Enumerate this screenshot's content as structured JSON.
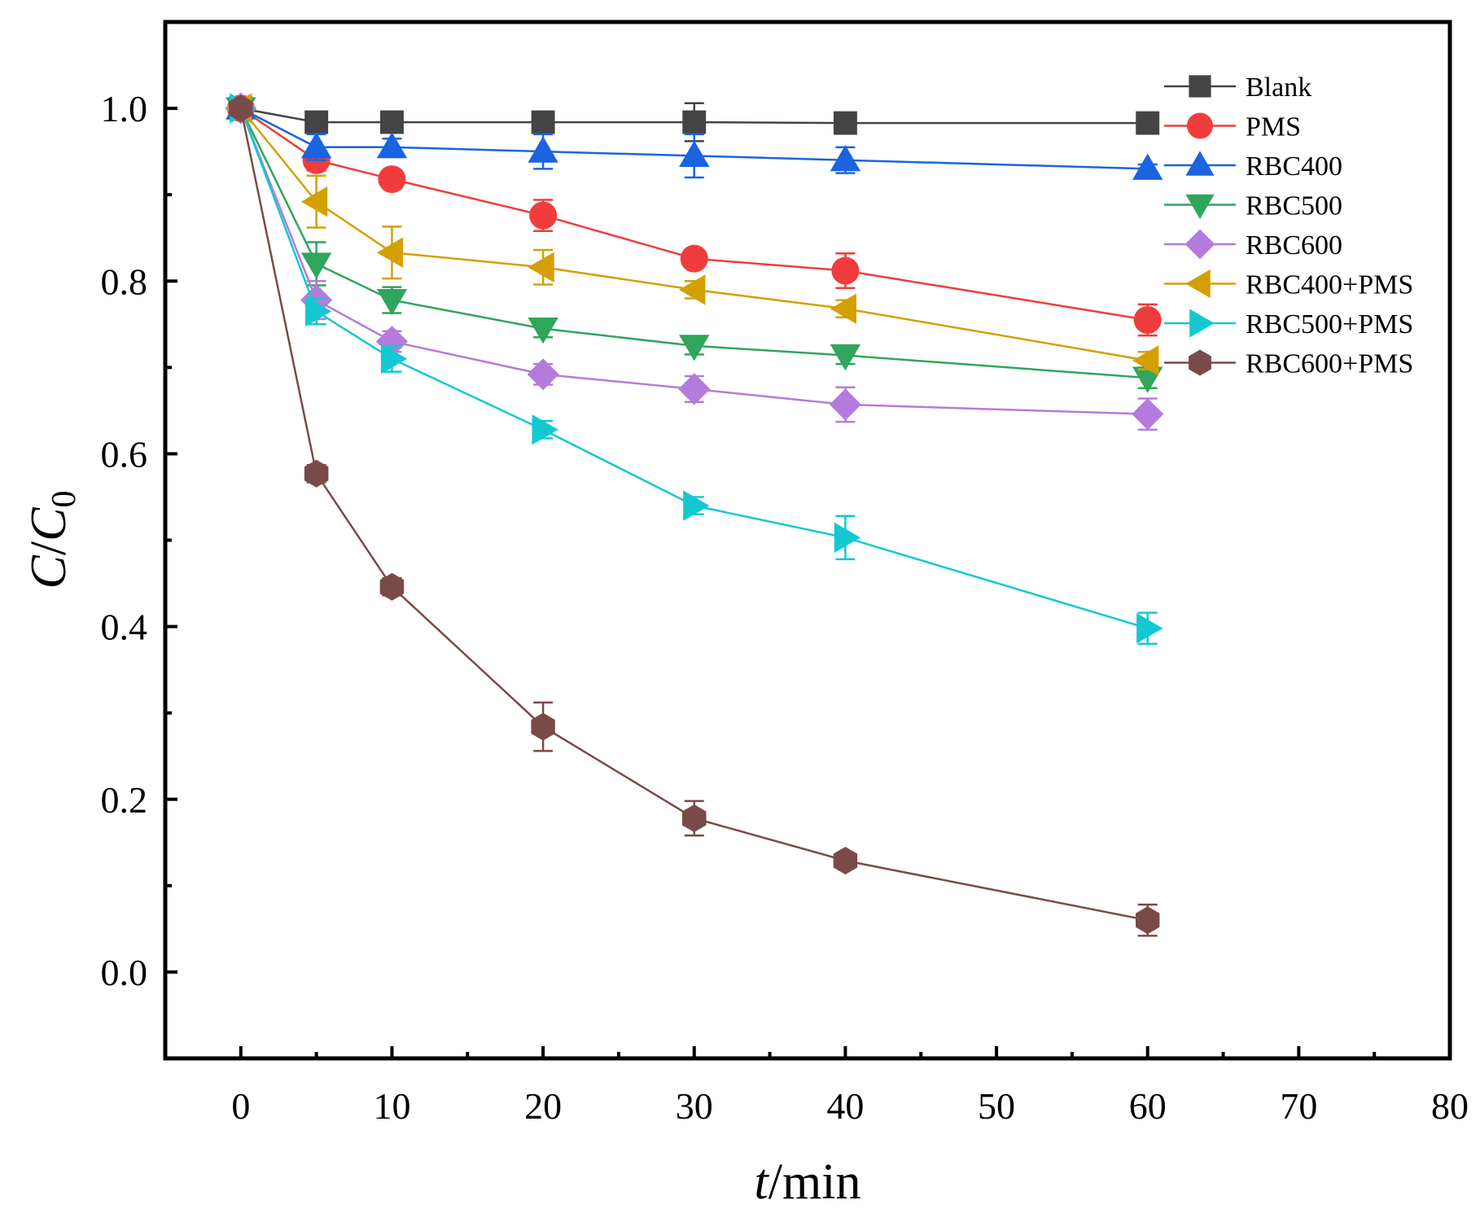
{
  "chart_data": {
    "type": "line",
    "xlabel": {
      "italic": "t",
      "rest": "/min"
    },
    "ylabel": {
      "c": "C",
      "slash": "/",
      "c0": "C",
      "sub": "0"
    },
    "xlim": [
      -5,
      80
    ],
    "ylim": [
      -0.1,
      1.1
    ],
    "xticks": [
      0,
      10,
      20,
      30,
      40,
      50,
      60,
      70,
      80
    ],
    "xtick_labels": [
      "0",
      "10",
      "20",
      "30",
      "40",
      "50",
      "60",
      "70",
      "80"
    ],
    "yticks": [
      0.0,
      0.2,
      0.4,
      0.6,
      0.8,
      1.0
    ],
    "ytick_labels": [
      "0.0",
      "0.2",
      "0.4",
      "0.6",
      "0.8",
      "1.0"
    ],
    "legend_position": "top-right",
    "grid": false,
    "x": [
      0,
      5,
      10,
      20,
      30,
      40,
      60
    ],
    "series": [
      {
        "name": "Blank",
        "color": "#444444",
        "marker": "square",
        "values": [
          1.0,
          0.984,
          0.984,
          0.984,
          0.984,
          0.983,
          0.983
        ],
        "errors": [
          0,
          0,
          0,
          0,
          0.022,
          0,
          0
        ]
      },
      {
        "name": "PMS",
        "color": "#f03c3c",
        "marker": "circle",
        "values": [
          1.0,
          0.94,
          0.918,
          0.876,
          0.826,
          0.812,
          0.755
        ],
        "errors": [
          0,
          0.012,
          0.008,
          0.018,
          0.008,
          0.02,
          0.018
        ]
      },
      {
        "name": "RBC400",
        "color": "#1a64e0",
        "marker": "triangle-up",
        "values": [
          1.0,
          0.955,
          0.955,
          0.95,
          0.945,
          0.94,
          0.93
        ],
        "errors": [
          0,
          0.015,
          0.01,
          0.02,
          0.025,
          0.015,
          0.005
        ]
      },
      {
        "name": "RBC500",
        "color": "#2fa65c",
        "marker": "triangle-down",
        "values": [
          1.0,
          0.82,
          0.778,
          0.745,
          0.725,
          0.714,
          0.688
        ],
        "errors": [
          0,
          0.025,
          0.015,
          0.01,
          0.01,
          0.01,
          0.012
        ]
      },
      {
        "name": "RBC600",
        "color": "#b57bdc",
        "marker": "diamond",
        "values": [
          1.0,
          0.778,
          0.73,
          0.692,
          0.675,
          0.657,
          0.646
        ],
        "errors": [
          0,
          0.022,
          0.012,
          0.012,
          0.015,
          0.02,
          0.018
        ]
      },
      {
        "name": "RBC400+PMS",
        "color": "#d4a000",
        "marker": "triangle-left",
        "values": [
          1.0,
          0.892,
          0.833,
          0.816,
          0.79,
          0.768,
          0.708
        ],
        "errors": [
          0,
          0.03,
          0.03,
          0.02,
          0.01,
          0.01,
          0.01
        ]
      },
      {
        "name": "RBC500+PMS",
        "color": "#14c8d2",
        "marker": "triangle-right",
        "values": [
          1.0,
          0.765,
          0.71,
          0.628,
          0.54,
          0.503,
          0.398
        ],
        "errors": [
          0,
          0.015,
          0.015,
          0.01,
          0.01,
          0.025,
          0.018
        ]
      },
      {
        "name": "RBC600+PMS",
        "color": "#7a4a48",
        "marker": "hexagon",
        "values": [
          1.0,
          0.577,
          0.446,
          0.284,
          0.178,
          0.129,
          0.06
        ],
        "errors": [
          0,
          0.01,
          0.01,
          0.028,
          0.02,
          0.005,
          0.018
        ]
      }
    ]
  }
}
